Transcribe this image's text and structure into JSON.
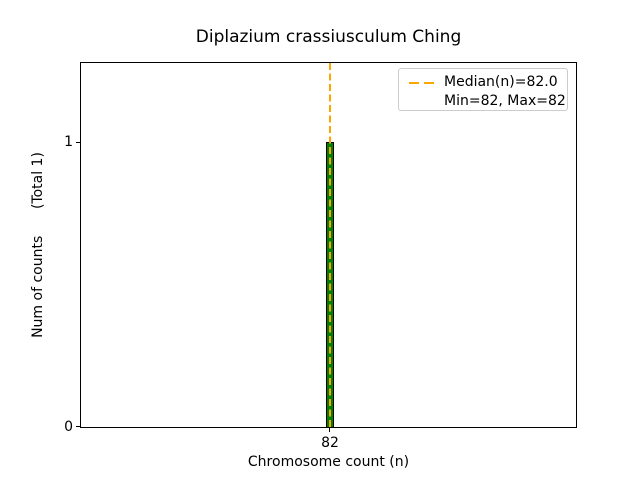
{
  "chart_data": {
    "type": "bar",
    "title": "Diplazium crassiusculum Ching",
    "xlabel": "Chromosome count (n)",
    "ylabel": "Num of counts      (Total 1)",
    "categories": [
      82
    ],
    "values": [
      1
    ],
    "x_tick_labels": [
      "82"
    ],
    "y_tick_labels": [
      "0",
      "1"
    ],
    "ylim": [
      0,
      1.28
    ],
    "grid": "off",
    "bar_fill_color": "#008000",
    "bar_edge_color": "#000000",
    "median_line": {
      "x": 82.0,
      "style": "dashed",
      "color": "#FFA500",
      "orientation": "vertical"
    },
    "stats": {
      "median": 82.0,
      "min": 82,
      "max": 82,
      "total_counts": 1
    },
    "legend": {
      "position": "upper right",
      "entries": [
        {
          "label": "Median(n)=82.0",
          "handle": "orange-dashed-line",
          "handle_color": "#FFA500"
        },
        {
          "label": "Min=82, Max=82",
          "handle": "none"
        }
      ]
    }
  }
}
